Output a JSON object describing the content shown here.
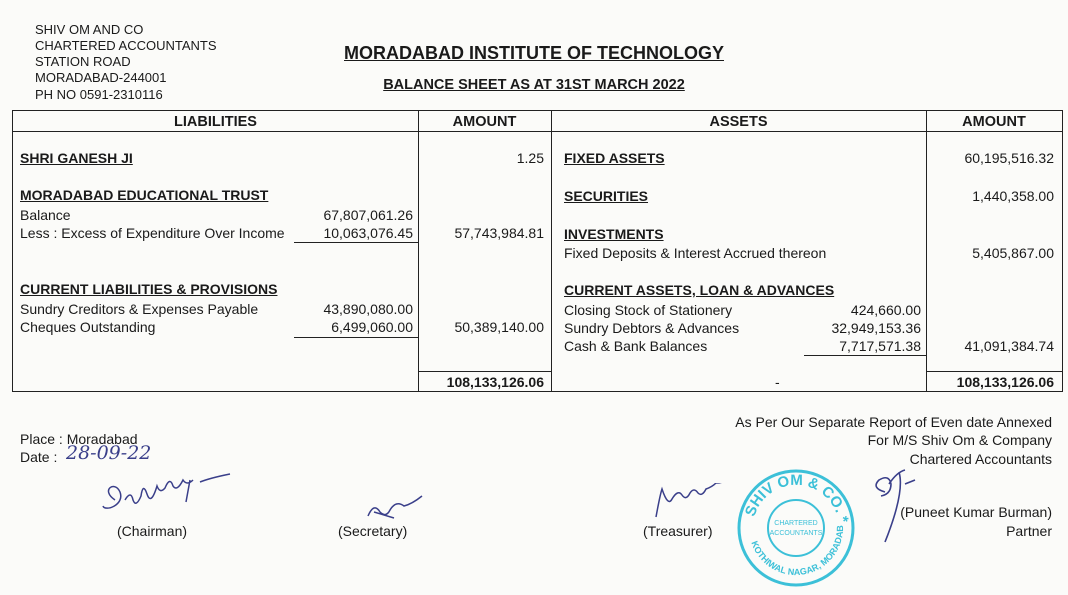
{
  "firm": {
    "lines": [
      "SHIV OM AND CO",
      "CHARTERED ACCOUNTANTS",
      "STATION ROAD",
      "MORADABAD-244001",
      "PH NO 0591-2310116"
    ]
  },
  "title": "MORADABAD INSTITUTE OF TECHNOLOGY",
  "subtitle": "BALANCE SHEET AS AT 31ST MARCH 2022",
  "table": {
    "headers": {
      "liabilities": "LIABILITIES",
      "amount_left": "AMOUNT",
      "assets": "ASSETS",
      "amount_right": "AMOUNT"
    },
    "liabilities": {
      "shri_ganesh": {
        "label": "SHRI GANESH JI",
        "amount": "1.25"
      },
      "trust": {
        "label": "MORADABAD EDUCATIONAL TRUST",
        "items": [
          {
            "label": "Balance",
            "sub_amount": "67,807,061.26"
          },
          {
            "label": "Less : Excess of Expenditure Over Income",
            "sub_amount": "10,063,076.45"
          }
        ],
        "amount": "57,743,984.81"
      },
      "current": {
        "label": "CURRENT LIABILITIES & PROVISIONS",
        "items": [
          {
            "label": "Sundry Creditors & Expenses Payable",
            "sub_amount": "43,890,080.00"
          },
          {
            "label": "Cheques Outstanding",
            "sub_amount": "6,499,060.00"
          }
        ],
        "amount": "50,389,140.00"
      },
      "total": "108,133,126.06"
    },
    "assets": {
      "fixed": {
        "label": "FIXED ASSETS",
        "amount": "60,195,516.32"
      },
      "securities": {
        "label": "SECURITIES",
        "amount": "1,440,358.00"
      },
      "investments": {
        "label": "INVESTMENTS",
        "items": [
          {
            "label": "Fixed Deposits & Interest Accrued thereon"
          }
        ],
        "amount": "5,405,867.00"
      },
      "current": {
        "label": "CURRENT ASSETS, LOAN & ADVANCES",
        "items": [
          {
            "label": "Closing Stock of Stationery",
            "sub_amount": "424,660.00"
          },
          {
            "label": "Sundry Debtors & Advances",
            "sub_amount": "32,949,153.36"
          },
          {
            "label": "Cash & Bank Balances",
            "sub_amount": "7,717,571.38"
          }
        ],
        "amount": "41,091,384.74"
      },
      "dash": "-",
      "total": "108,133,126.06"
    }
  },
  "footer": {
    "place": "Place : Moradabad",
    "date_label": "Date :",
    "date_value": "28-09-22",
    "chairman": "(Chairman)",
    "secretary": "(Secretary)",
    "treasurer": "(Treasurer)",
    "report_lines": [
      "As Per Our Separate Report of Even date Annexed",
      "For M/S Shiv Om & Company",
      "Chartered Accountants"
    ],
    "partner_name": "(Puneet Kumar Burman)",
    "partner_title": "Partner",
    "stamp": {
      "outer": "SHIV OM & CO.",
      "inner": "CHARTERED ACCOUNTANTS",
      "bottom": "KOTHIWAL NAGAR, MORADABAD",
      "color": "#3cc0d8"
    }
  }
}
